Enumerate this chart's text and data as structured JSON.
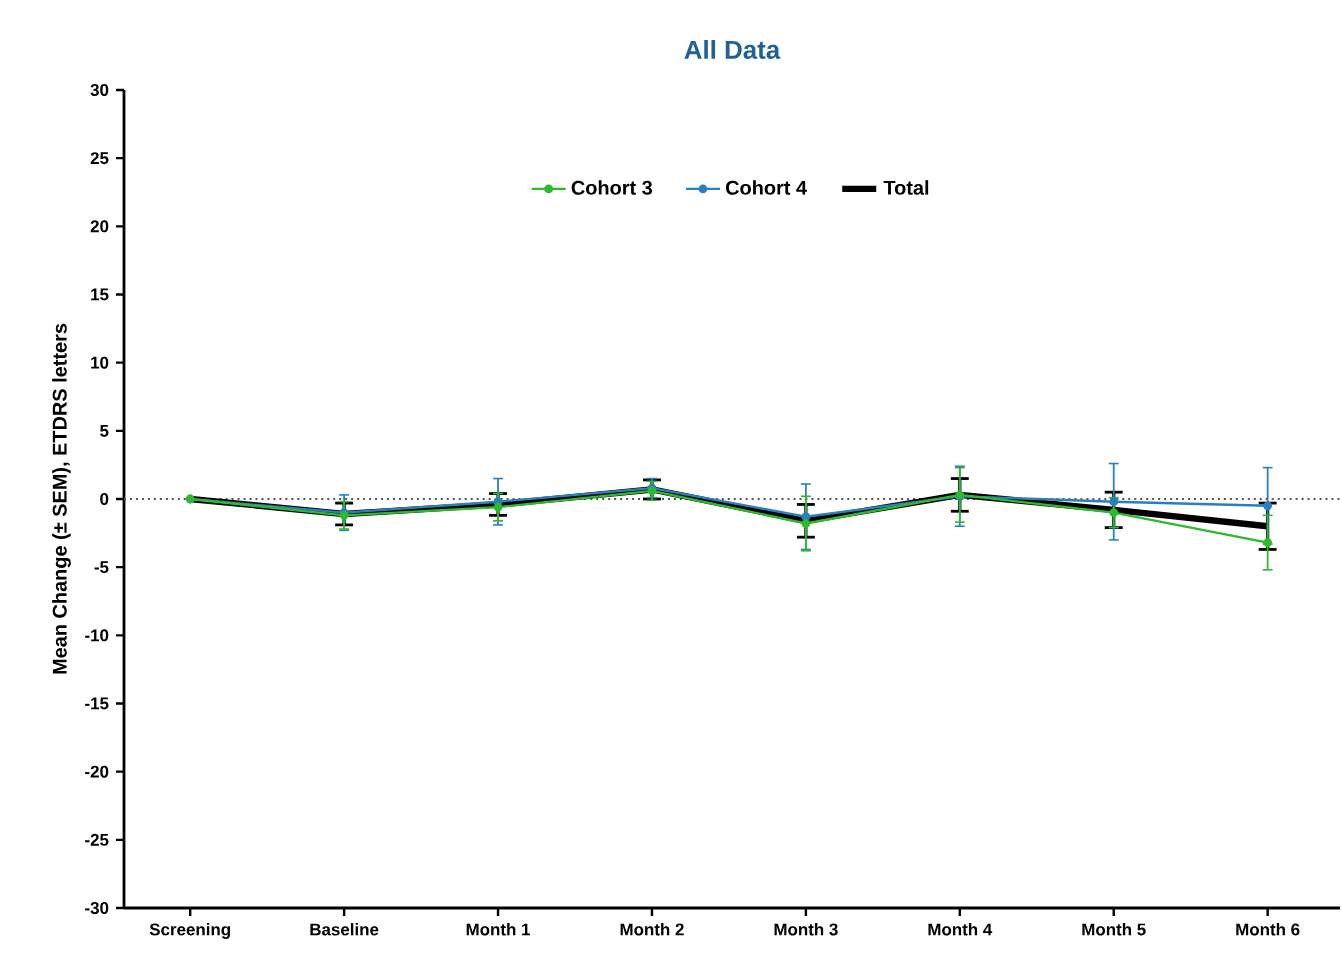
{
  "chart_data": {
    "type": "line",
    "title": "All Data",
    "ylabel": "Mean Change (± SEM), ETDRS letters",
    "categories": [
      "Screening",
      "Baseline",
      "Month 1",
      "Month 2",
      "Month 3",
      "Month 4",
      "Month 5",
      "Month 6"
    ],
    "series": [
      {
        "name": "Cohort 3",
        "color": "#2dbb2d",
        "marker": "circle",
        "values": [
          0,
          -1.2,
          -0.6,
          0.6,
          -1.8,
          0.3,
          -1.0,
          -3.2
        ],
        "errors": [
          null,
          1.0,
          1.0,
          0.7,
          2.0,
          2.0,
          1.1,
          2.0
        ]
      },
      {
        "name": "Cohort 4",
        "color": "#2a7fc0",
        "marker": "circle",
        "values": [
          0,
          -1.0,
          -0.2,
          0.8,
          -1.3,
          0.2,
          -0.2,
          -0.5
        ],
        "errors": [
          null,
          1.3,
          1.7,
          0.7,
          2.4,
          2.2,
          2.8,
          2.8
        ]
      },
      {
        "name": "Total",
        "color": "#000000",
        "marker": "none",
        "values": [
          0,
          -1.1,
          -0.4,
          0.7,
          -1.6,
          0.3,
          -0.8,
          -2.0
        ],
        "errors": [
          null,
          0.8,
          0.8,
          0.7,
          1.2,
          1.2,
          1.3,
          1.7
        ]
      }
    ],
    "ylim": [
      -30,
      30
    ],
    "yticks": [
      -30,
      -25,
      -20,
      -15,
      -10,
      -5,
      0,
      5,
      10,
      15,
      20,
      25,
      30
    ],
    "ref_lines": [
      {
        "axis": "y",
        "value": 0,
        "line_style": "dotted",
        "color": "#555555"
      }
    ],
    "legend": "top",
    "grid": false
  }
}
